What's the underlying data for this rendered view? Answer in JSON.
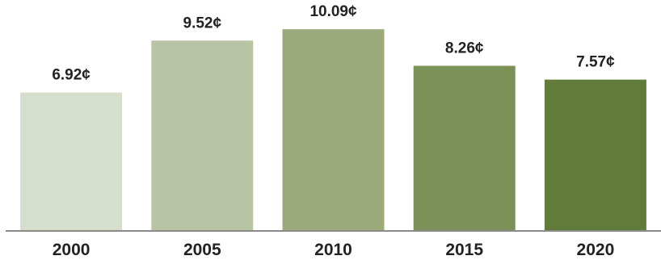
{
  "chart_data": {
    "type": "bar",
    "categories": [
      "2000",
      "2005",
      "2010",
      "2015",
      "2020"
    ],
    "values": [
      6.92,
      9.52,
      10.09,
      8.26,
      7.57
    ],
    "value_labels": [
      "6.92¢",
      "9.52¢",
      "10.09¢",
      "8.26¢",
      "7.57¢"
    ],
    "title": "",
    "xlabel": "",
    "ylabel": "",
    "ylim": [
      0,
      11.55
    ],
    "grid": false,
    "legend": "none",
    "bar_colors": [
      "#d6dfcb",
      "#b8c5a4",
      "#9aaa7b",
      "#7b9157",
      "#617b3a"
    ],
    "axis_color": "#8a8a8a"
  }
}
